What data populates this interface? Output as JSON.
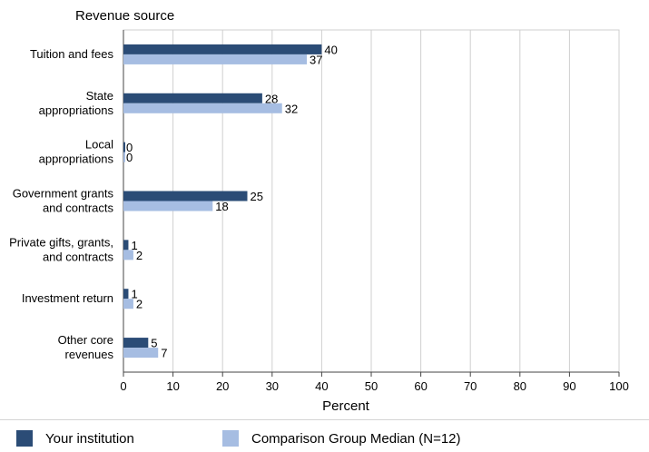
{
  "chart_data": {
    "type": "bar",
    "orientation": "horizontal",
    "title": "Revenue source",
    "xlabel": "Percent",
    "xlim": [
      0,
      100
    ],
    "xticks": [
      0,
      10,
      20,
      30,
      40,
      50,
      60,
      70,
      80,
      90,
      100
    ],
    "grid": "vertical gridlines",
    "legend_position": "bottom",
    "categories": [
      [
        "Tuition and fees"
      ],
      [
        "State",
        "appropriations"
      ],
      [
        "Local",
        "appropriations"
      ],
      [
        "Government grants",
        "and contracts"
      ],
      [
        "Private gifts, grants,",
        "and contracts"
      ],
      [
        "Investment return"
      ],
      [
        "Other core",
        "revenues"
      ]
    ],
    "series": [
      {
        "name": "Your institution",
        "color": "#2b4c76",
        "values": [
          40,
          28,
          0,
          25,
          1,
          1,
          5
        ]
      },
      {
        "name": "Comparison Group Median (N=12)",
        "color": "#a6bde2",
        "values": [
          37,
          32,
          0,
          18,
          2,
          2,
          7
        ]
      }
    ]
  },
  "legend": {
    "institution_label": "Your institution",
    "comparison_label": "Comparison Group Median (N=12)",
    "institution_color": "#2b4c76",
    "comparison_color": "#a6bde2"
  }
}
